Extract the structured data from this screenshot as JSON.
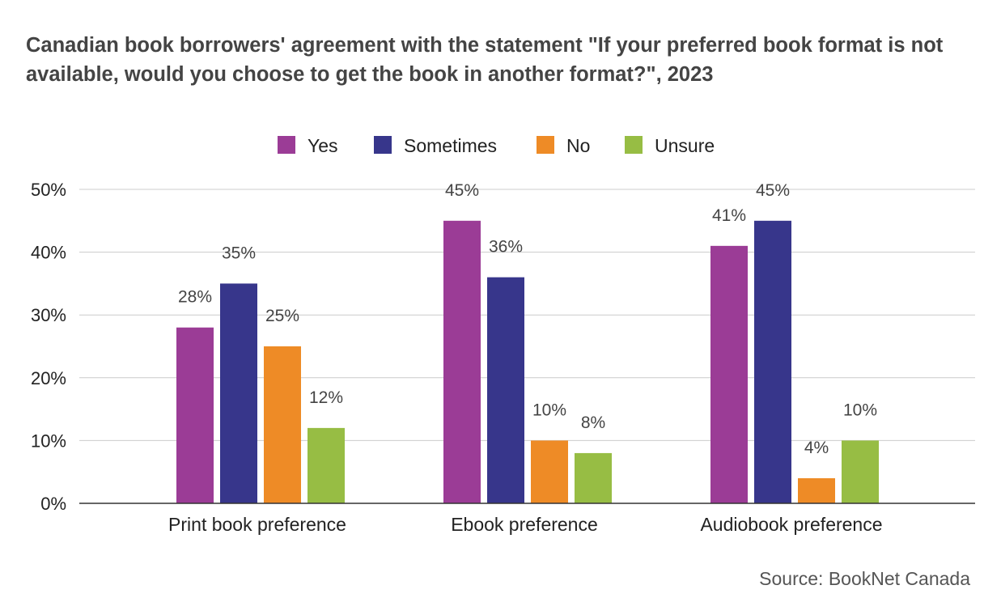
{
  "chart_data": {
    "type": "bar",
    "title": "Canadian book borrowers' agreement with the statement \"If your preferred book format is not available, would you choose to get the book in another format?\", 2023",
    "source": "Source: BookNet Canada",
    "categories": [
      "Print book preference",
      "Ebook preference",
      "Audiobook preference"
    ],
    "series": [
      {
        "name": "Yes",
        "color": "#9b3c96",
        "values": [
          28,
          45,
          41
        ]
      },
      {
        "name": "Sometimes",
        "color": "#37368b",
        "values": [
          35,
          36,
          45
        ]
      },
      {
        "name": "No",
        "color": "#ee8b26",
        "values": [
          25,
          10,
          4
        ]
      },
      {
        "name": "Unsure",
        "color": "#97bd44",
        "values": [
          12,
          8,
          10
        ]
      }
    ],
    "ylim": [
      0,
      50
    ],
    "yticks": [
      "0%",
      "10%",
      "20%",
      "30%",
      "40%",
      "50%"
    ],
    "value_suffix": "%",
    "legend_position": "top",
    "grid": true,
    "xlabel": "",
    "ylabel": ""
  }
}
